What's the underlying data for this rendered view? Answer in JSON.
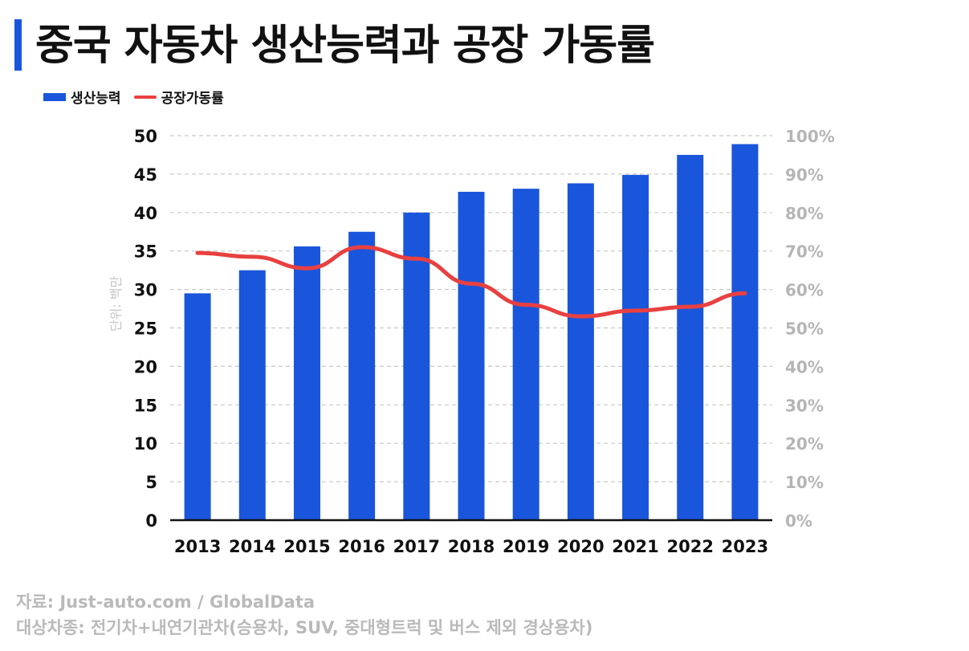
{
  "title": "중국 자동차 생산능력과 공장 가동률",
  "colors": {
    "bar": "#1a56db",
    "line": "#e84040",
    "accent": "#1a56db"
  },
  "chart_data": {
    "type": "bar",
    "categories": [
      "2013",
      "2014",
      "2015",
      "2016",
      "2017",
      "2018",
      "2019",
      "2020",
      "2021",
      "2022",
      "2023"
    ],
    "series": [
      {
        "name": "생산능력",
        "type": "bar",
        "axis": "left",
        "values": [
          29.5,
          32.5,
          35.6,
          37.5,
          40.0,
          42.7,
          43.1,
          43.8,
          44.9,
          47.5,
          48.9
        ]
      },
      {
        "name": "공장가동률",
        "type": "line",
        "axis": "right",
        "values": [
          69.5,
          68.5,
          65.5,
          71.0,
          68.0,
          61.5,
          56.0,
          53.0,
          54.5,
          55.5,
          59.0
        ]
      }
    ],
    "ylabel": "단위: 백만",
    "ylim": [
      0,
      50
    ],
    "y_ticks": [
      "0",
      "5",
      "10",
      "15",
      "20",
      "25",
      "30",
      "35",
      "40",
      "45",
      "50"
    ],
    "y2lim": [
      0,
      100
    ],
    "y2_ticks": [
      "0%",
      "10%",
      "20%",
      "30%",
      "40%",
      "50%",
      "60%",
      "70%",
      "80%",
      "90%",
      "100%"
    ],
    "grid": true,
    "legend": "top-left"
  },
  "sources": {
    "source": "자료: Just-auto.com / GlobalData",
    "scope": "대상차종: 전기차+내연기관차(승용차, SUV, 중대형트럭 및 버스 제외 경상용차)"
  }
}
